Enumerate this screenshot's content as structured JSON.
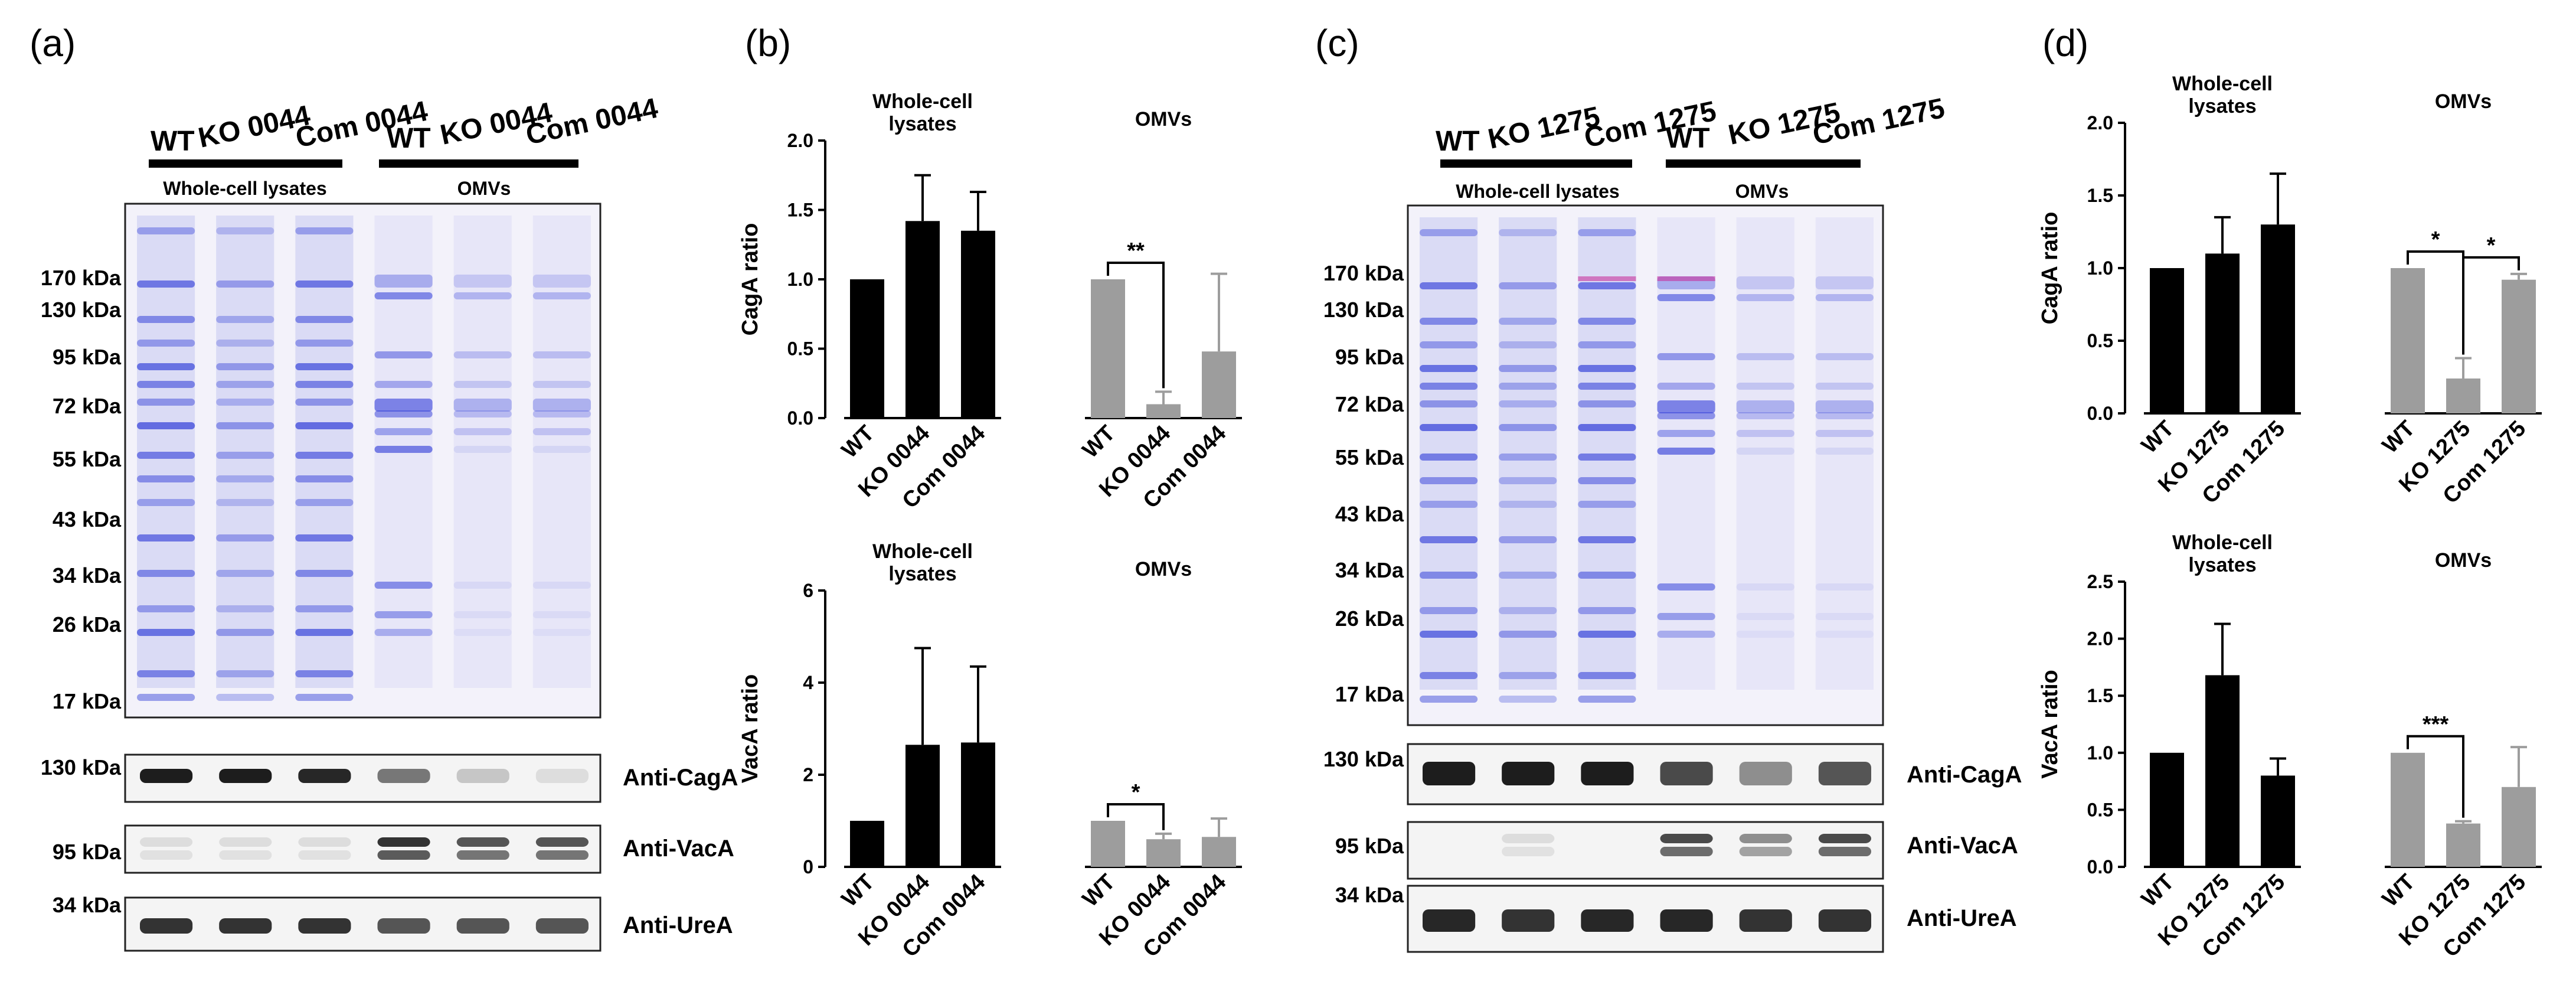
{
  "panel_labels": [
    "(a)",
    "(b)",
    "(c)",
    "(d)"
  ],
  "blots": [
    {
      "lanes": [
        "WT",
        "KO 0044",
        "Com 0044",
        "WT",
        "KO 0044",
        "Com 0044"
      ],
      "group_labels": [
        "Whole-cell lysates",
        "OMVs"
      ],
      "markers": [
        "170 kDa",
        "130 kDa",
        "95 kDa",
        "72 kDa",
        "55 kDa",
        "43 kDa",
        "34 kDa",
        "26 kDa",
        "17 kDa"
      ],
      "wb": [
        {
          "marker": "130 kDa",
          "antibody": "Anti-CagA"
        },
        {
          "marker": "95 kDa",
          "antibody": "Anti-VacA"
        },
        {
          "marker": "34 kDa",
          "antibody": "Anti-UreA"
        }
      ]
    },
    {
      "lanes": [
        "WT",
        "KO 1275",
        "Com 1275",
        "WT",
        "KO 1275",
        "Com 1275"
      ],
      "group_labels": [
        "Whole-cell lysates",
        "OMVs"
      ],
      "markers": [
        "170 kDa",
        "130 kDa",
        "95 kDa",
        "72 kDa",
        "55 kDa",
        "43 kDa",
        "34 kDa",
        "26 kDa",
        "17 kDa"
      ],
      "wb": [
        {
          "marker": "130 kDa",
          "antibody": "Anti-CagA"
        },
        {
          "marker": "95 kDa",
          "antibody": "Anti-VacA"
        },
        {
          "marker": "34 kDa",
          "antibody": "Anti-UreA"
        }
      ]
    }
  ],
  "colors": {
    "wcl_bar": "#000000",
    "omv_bar": "#9d9d9d",
    "gel_bg": "#f3f2fa",
    "band": "#2d3ad8",
    "band_magenta": "#c8329c"
  },
  "chart_data": [
    {
      "type": "bar",
      "panel": "(b)",
      "ylabel": "CagA ratio",
      "ylim": [
        0,
        2.0
      ],
      "yticks": [
        "0.0",
        "0.5",
        "1.0",
        "1.5",
        "2.0"
      ],
      "group_titles": [
        "Whole-cell\nlysates",
        "OMVs"
      ],
      "categories": [
        "WT",
        "KO 0044",
        "Com 0044",
        "WT",
        "KO 0044",
        "Com 0044"
      ],
      "groups": [
        "wcl",
        "wcl",
        "wcl",
        "omv",
        "omv",
        "omv"
      ],
      "values": [
        1.0,
        1.42,
        1.35,
        1.0,
        0.1,
        0.48
      ],
      "errors": [
        0,
        0.33,
        0.28,
        0,
        0.09,
        0.56
      ],
      "significance": [
        {
          "from": 3,
          "to": 4,
          "label": "**"
        }
      ]
    },
    {
      "type": "bar",
      "panel": "(b)",
      "ylabel": "VacA ratio",
      "ylim": [
        0,
        6
      ],
      "yticks": [
        "0",
        "2",
        "4",
        "6"
      ],
      "group_titles": [
        "Whole-cell\nlysates",
        "OMVs"
      ],
      "categories": [
        "WT",
        "KO 0044",
        "Com 0044",
        "WT",
        "KO 0044",
        "Com 0044"
      ],
      "groups": [
        "wcl",
        "wcl",
        "wcl",
        "omv",
        "omv",
        "omv"
      ],
      "values": [
        1.0,
        2.65,
        2.7,
        1.0,
        0.6,
        0.65
      ],
      "errors": [
        0,
        2.1,
        1.65,
        0,
        0.12,
        0.4
      ],
      "significance": [
        {
          "from": 3,
          "to": 4,
          "label": "*"
        }
      ]
    },
    {
      "type": "bar",
      "panel": "(d)",
      "ylabel": "CagA ratio",
      "ylim": [
        0,
        2.0
      ],
      "yticks": [
        "0.0",
        "0.5",
        "1.0",
        "1.5",
        "2.0"
      ],
      "group_titles": [
        "Whole-cell\nlysates",
        "OMVs"
      ],
      "categories": [
        "WT",
        "KO 1275",
        "Com 1275",
        "WT",
        "KO 1275",
        "Com 1275"
      ],
      "groups": [
        "wcl",
        "wcl",
        "wcl",
        "omv",
        "omv",
        "omv"
      ],
      "values": [
        1.0,
        1.1,
        1.3,
        1.0,
        0.24,
        0.92
      ],
      "errors": [
        0,
        0.25,
        0.35,
        0,
        0.14,
        0.04
      ],
      "significance": [
        {
          "from": 3,
          "to": 4,
          "label": "*"
        },
        {
          "from": 4,
          "to": 5,
          "label": "*"
        }
      ]
    },
    {
      "type": "bar",
      "panel": "(d)",
      "ylabel": "VacA ratio",
      "ylim": [
        0,
        2.5
      ],
      "yticks": [
        "0.0",
        "0.5",
        "1.0",
        "1.5",
        "2.0",
        "2.5"
      ],
      "group_titles": [
        "Whole-cell\nlysates",
        "OMVs"
      ],
      "categories": [
        "WT",
        "KO 1275",
        "Com 1275",
        "WT",
        "KO 1275",
        "Com 1275"
      ],
      "groups": [
        "wcl",
        "wcl",
        "wcl",
        "omv",
        "omv",
        "omv"
      ],
      "values": [
        1.0,
        1.68,
        0.8,
        1.0,
        0.38,
        0.7
      ],
      "errors": [
        0,
        0.45,
        0.15,
        0,
        0.02,
        0.35
      ],
      "significance": [
        {
          "from": 3,
          "to": 4,
          "label": "***"
        }
      ]
    }
  ]
}
